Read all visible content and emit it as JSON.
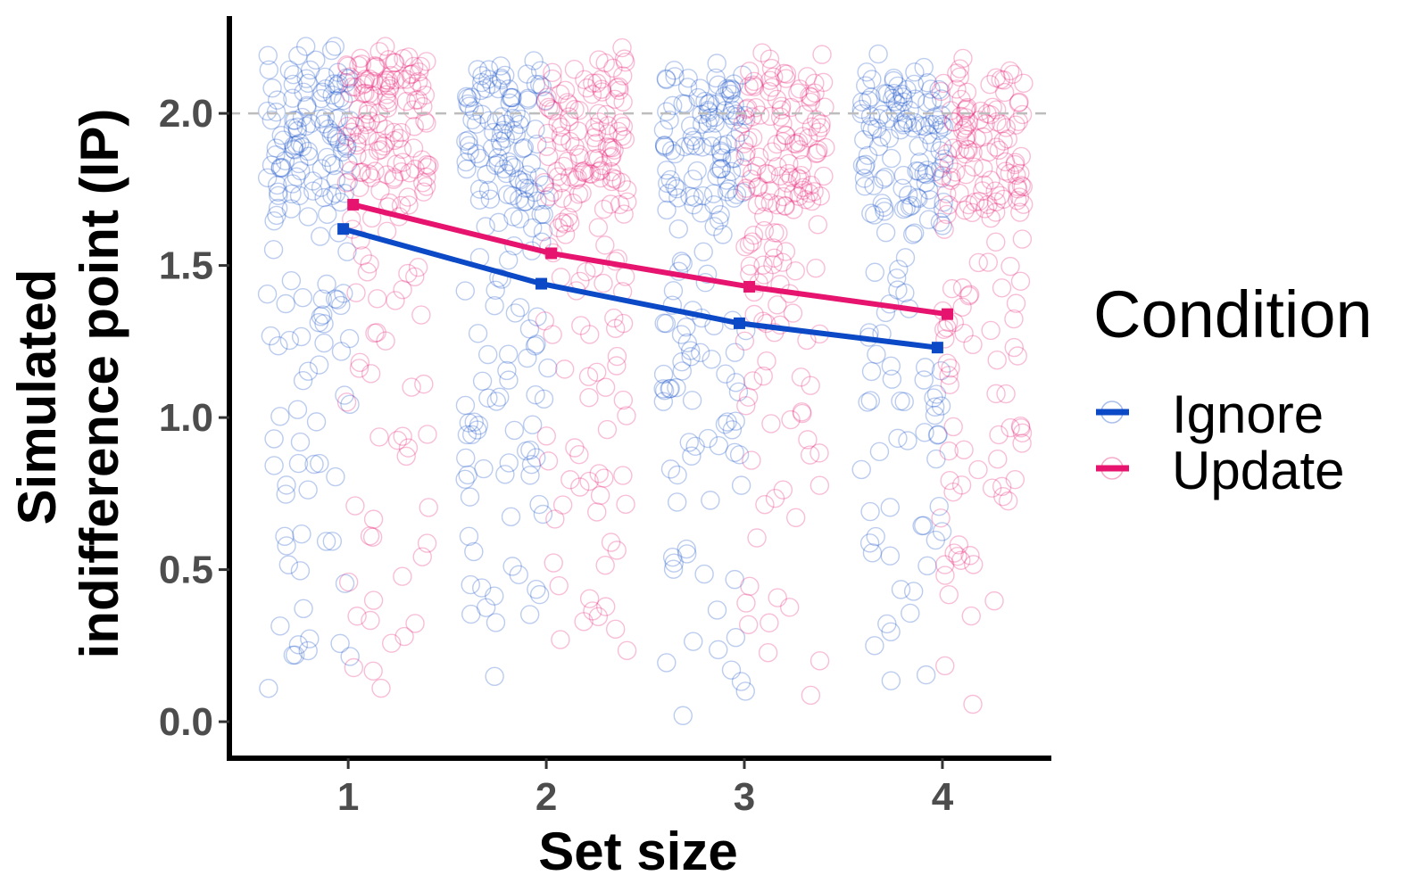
{
  "chart_data": {
    "type": "scatter",
    "title": "",
    "xlabel": "Set size",
    "ylabel_lines": [
      "Simulated",
      "indifference point (IP)"
    ],
    "categories": [
      "1",
      "2",
      "3",
      "4"
    ],
    "xlim": [
      0.4,
      4.55
    ],
    "ylim": [
      -0.12,
      2.32
    ],
    "yticks": [
      0.0,
      0.5,
      1.0,
      1.5,
      2.0
    ],
    "ytick_labels": [
      "0.0",
      "0.5",
      "1.0",
      "1.5",
      "2.0"
    ],
    "reference_line": {
      "y": 2.0,
      "style": "dashed",
      "color": "#bdbdbd"
    },
    "grid": false,
    "legend": {
      "title": "Condition",
      "position": "right",
      "entries": [
        "Ignore",
        "Update"
      ]
    },
    "series": [
      {
        "name": "Ignore",
        "color": "#0b49c6",
        "x": [
          1,
          2,
          3,
          4
        ],
        "y": [
          1.62,
          1.44,
          1.31,
          1.23
        ]
      },
      {
        "name": "Update",
        "color": "#e6146e",
        "x": [
          1,
          2,
          3,
          4
        ],
        "y": [
          1.7,
          1.54,
          1.43,
          1.34
        ]
      }
    ]
  }
}
